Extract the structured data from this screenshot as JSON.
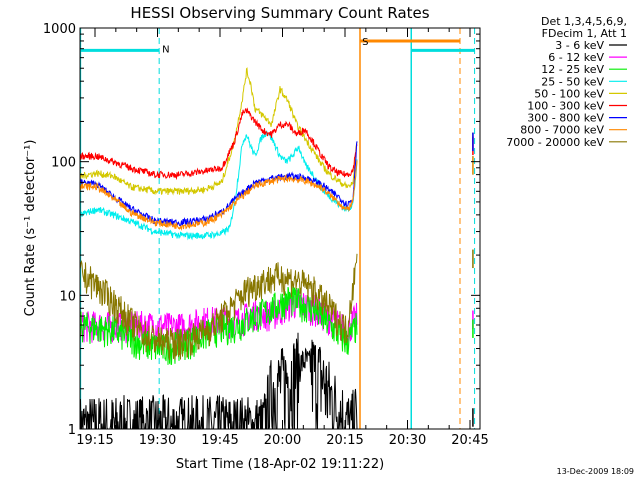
{
  "chart_data": {
    "type": "line",
    "title": "HESSI Observing Summary Count Rates",
    "xlabel": "Start Time (18-Apr-02 19:11:22)",
    "ylabel": "Count Rate (s⁻¹ detector⁻¹)",
    "x_unit": "minutes after 19:11:22",
    "xlim": [
      0,
      96
    ],
    "ylim": [
      1,
      1000
    ],
    "yscale": "log",
    "grid": false,
    "legend_position": "right",
    "legend_header": [
      "Det 1,3,4,5,6,9,",
      "FDecim 1, Att 1"
    ],
    "x_ticks": [
      {
        "label": "19:15",
        "x": 3.6
      },
      {
        "label": "19:30",
        "x": 18.6
      },
      {
        "label": "19:45",
        "x": 33.6
      },
      {
        "label": "20:00",
        "x": 48.6
      },
      {
        "label": "20:15",
        "x": 63.6
      },
      {
        "label": "20:30",
        "x": 78.6
      },
      {
        "label": "20:45",
        "x": 93.6
      }
    ],
    "y_ticks": [
      {
        "label": "1",
        "y": 1
      },
      {
        "label": "10",
        "y": 10
      },
      {
        "label": "100",
        "y": 100
      },
      {
        "label": "1000",
        "y": 1000
      }
    ],
    "gaps": [
      [
        66.5,
        94.3
      ]
    ],
    "series": [
      {
        "name": "3 - 6 keV",
        "color": "#000000",
        "x": [
          0,
          44,
          46,
          50,
          54,
          58,
          60,
          65,
          66.5
        ],
        "y": [
          1,
          1,
          2,
          2.5,
          3.3,
          2.5,
          1.8,
          1,
          1.3
        ]
      },
      {
        "name": "6 - 12 keV",
        "color": "#ff00ff",
        "x": [
          0,
          8,
          16,
          24,
          30,
          38,
          42,
          46,
          50,
          52,
          56,
          60,
          64,
          66.5
        ],
        "y": [
          6,
          6,
          6,
          5.8,
          6.5,
          6.5,
          7.5,
          7.2,
          8.5,
          9,
          8,
          6.8,
          5.5,
          7
        ]
      },
      {
        "name": "12 - 25 keV",
        "color": "#00ee00",
        "x": [
          0,
          8,
          14,
          20,
          26,
          32,
          38,
          42,
          46,
          50,
          52,
          56,
          60,
          64,
          66.5
        ],
        "y": [
          6,
          5.5,
          4.5,
          4,
          4.5,
          5.5,
          6,
          7,
          8,
          9.5,
          9,
          8,
          6,
          4.5,
          6
        ]
      },
      {
        "name": "25 - 50 keV",
        "color": "#00eeee",
        "x": [
          0,
          4,
          8,
          12,
          18,
          24,
          30,
          34,
          36,
          37.5,
          39,
          40,
          41,
          42,
          43.5,
          45,
          46.5,
          48,
          49.5,
          51,
          52.5,
          54,
          56,
          58,
          60,
          62,
          64,
          65.5,
          66.5
        ],
        "y": [
          40,
          44,
          40,
          36,
          30,
          28,
          28,
          29,
          32,
          60,
          140,
          160,
          130,
          110,
          150,
          170,
          140,
          110,
          100,
          110,
          130,
          95,
          80,
          62,
          55,
          48,
          44,
          48,
          100
        ]
      },
      {
        "name": "50 - 100 keV",
        "color": "#d4c800",
        "x": [
          0,
          4,
          8,
          12,
          18,
          24,
          30,
          34,
          37,
          39,
          40,
          41,
          42,
          44,
          46,
          48,
          50,
          52,
          54,
          56,
          58,
          60,
          62,
          64,
          65.5,
          66.5
        ],
        "y": [
          78,
          82,
          78,
          65,
          60,
          60,
          62,
          70,
          140,
          300,
          480,
          380,
          250,
          220,
          190,
          350,
          280,
          190,
          150,
          120,
          95,
          80,
          72,
          65,
          68,
          150
        ]
      },
      {
        "name": "100 - 300 keV",
        "color": "#ff0000",
        "x": [
          0,
          4,
          8,
          12,
          18,
          24,
          30,
          34,
          37,
          39,
          40,
          41,
          42,
          44,
          46,
          48,
          50,
          52,
          54,
          56,
          58,
          60,
          62,
          64,
          65.5,
          66.5
        ],
        "y": [
          110,
          110,
          100,
          90,
          80,
          80,
          85,
          90,
          140,
          230,
          240,
          220,
          200,
          170,
          160,
          190,
          190,
          160,
          175,
          140,
          110,
          90,
          82,
          80,
          85,
          140
        ]
      },
      {
        "name": "300 - 800 keV",
        "color": "#0000ff",
        "x": [
          0,
          4,
          8,
          12,
          18,
          24,
          30,
          34,
          38,
          42,
          46,
          50,
          54,
          58,
          60,
          62,
          64,
          65.5,
          66.5
        ],
        "y": [
          70,
          68,
          55,
          45,
          36,
          35,
          37,
          42,
          55,
          70,
          75,
          78,
          76,
          68,
          60,
          55,
          48,
          52,
          150
        ]
      },
      {
        "name": "800 - 7000 keV",
        "color": "#ff8800",
        "x": [
          0,
          4,
          8,
          12,
          18,
          24,
          30,
          34,
          38,
          42,
          46,
          50,
          54,
          58,
          60,
          62,
          64,
          65.5,
          66.5
        ],
        "y": [
          65,
          65,
          53,
          42,
          35,
          33,
          35,
          40,
          52,
          66,
          72,
          75,
          72,
          64,
          56,
          50,
          43,
          50,
          100
        ]
      },
      {
        "name": "7000 - 20000 keV",
        "color": "#887700",
        "x": [
          0,
          4,
          8,
          12,
          16,
          20,
          24,
          28,
          32,
          36,
          40,
          44,
          48,
          52,
          56,
          60,
          64,
          66.5
        ],
        "y": [
          15,
          12,
          9,
          6.5,
          5,
          4.5,
          4.5,
          5,
          6,
          8,
          11,
          13,
          14,
          13,
          11,
          8,
          5.5,
          20
        ]
      }
    ],
    "annotations": [
      {
        "text": "N",
        "x": 19,
        "y": 700
      },
      {
        "text": "S",
        "x": 67,
        "y": 800
      }
    ]
  },
  "footer": {
    "timestamp": "13-Dec-2009 18:09"
  }
}
